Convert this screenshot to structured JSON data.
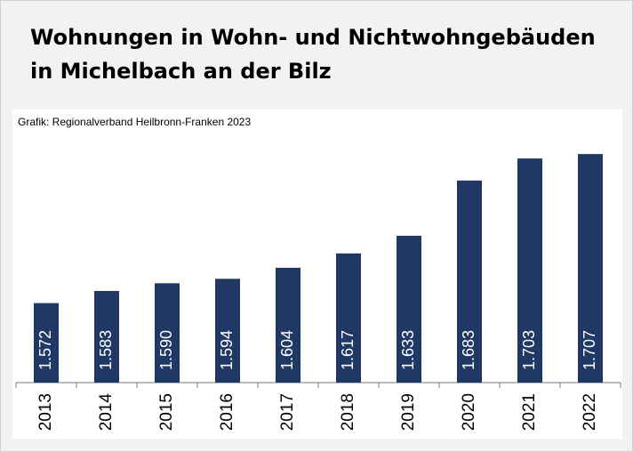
{
  "chart_data": {
    "type": "bar",
    "title": [
      "Wohnungen in Wohn- und Nichtwohngebäuden",
      "in Michelbach an der Bilz"
    ],
    "subtitle": "Grafik: Regionalverband Heilbronn-Franken 2023",
    "categories": [
      "2013",
      "2014",
      "2015",
      "2016",
      "2017",
      "2018",
      "2019",
      "2020",
      "2021",
      "2022"
    ],
    "values": [
      1572,
      1583,
      1590,
      1594,
      1604,
      1617,
      1633,
      1683,
      1703,
      1707
    ],
    "value_labels": [
      "1.572",
      "1.583",
      "1.590",
      "1.594",
      "1.604",
      "1.617",
      "1.633",
      "1.683",
      "1.703",
      "1.707"
    ],
    "color": "#203864",
    "ylim": [
      1500,
      1720
    ]
  }
}
